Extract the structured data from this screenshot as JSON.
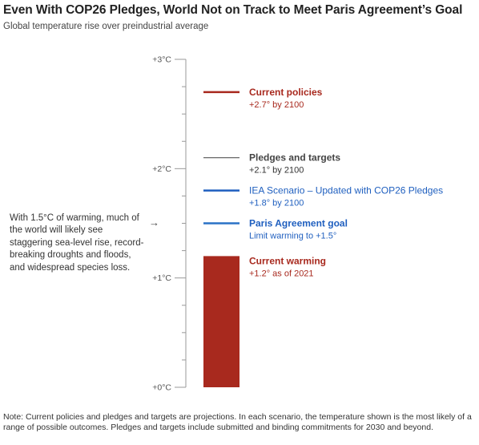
{
  "title": "Even With COP26 Pledges, World Not on Track to Meet Paris Agreement’s Goal",
  "subtitle": "Global temperature rise over preindustrial average",
  "side_note": "With 1.5°C of warming, much of the world will likely see staggering sea-level rise, record-breaking droughts and floods, and widespread species loss.",
  "footnote": "Note: Current policies and pledges and targets are projections. In each scenario, the temperature shown is the most likely of a range of possible outcomes. Pledges and targets include submitted and binding commitments for 2030 and beyond.",
  "chart_data": {
    "type": "bar",
    "ylim": [
      0,
      3
    ],
    "ytick_values": [
      0,
      1,
      2,
      3
    ],
    "ytick_labels": [
      "+0°C",
      "+1°C",
      "+2°C",
      "+3°C"
    ],
    "bar": {
      "label": "Current warming",
      "sublabel": "+1.2° as of 2021",
      "value": 1.2,
      "color": "#a8291e"
    },
    "markers": [
      {
        "label": "Current policies",
        "sublabel": "+2.7° by 2100",
        "value": 2.7,
        "color": "#a8291e",
        "label_color": "#a8291e",
        "sub_color": "#a8291e",
        "style": "bold"
      },
      {
        "label": "Pledges and targets",
        "sublabel": "+2.1° by 2100",
        "value": 2.1,
        "color": "#555555",
        "label_color": "#444444",
        "sub_color": "#333333",
        "style": "bold"
      },
      {
        "label": "IEA Scenario – Updated with COP26 Pledges",
        "sublabel": "+1.8° by 2100",
        "value": 1.8,
        "color": "#1f5fbf",
        "label_color": "#1f5fbf",
        "sub_color": "#1f5fbf",
        "style": "normal"
      },
      {
        "label": "Paris Agreement goal",
        "sublabel": "Limit warming to +1.5°",
        "value": 1.5,
        "color": "#2a72c6",
        "label_color": "#1f5fbf",
        "sub_color": "#1f5fbf",
        "style": "bold"
      }
    ]
  }
}
